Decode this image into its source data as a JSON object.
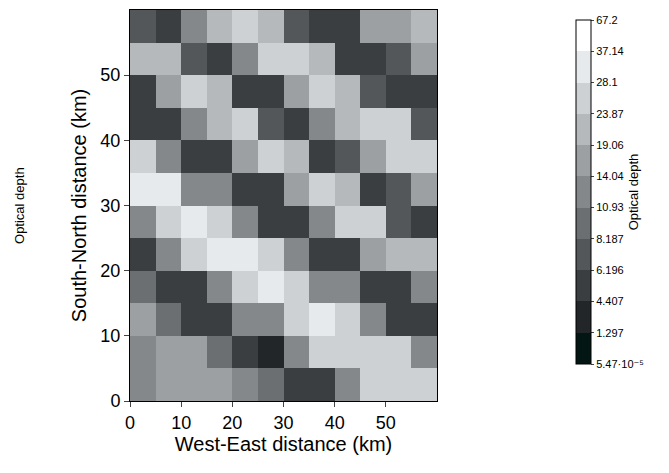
{
  "chart_data": {
    "type": "heatmap",
    "x_label": "West-East distance (km)",
    "y_label": "South-North distance (km)",
    "x": [
      2.5,
      7.5,
      12.5,
      17.5,
      22.5,
      27.5,
      32.5,
      37.5,
      42.5,
      47.5,
      52.5,
      57.5
    ],
    "y": [
      2.5,
      7.5,
      12.5,
      17.5,
      22.5,
      27.5,
      32.5,
      37.5,
      42.5,
      47.5,
      52.5,
      57.5
    ],
    "z": [
      [
        13,
        15,
        17,
        16,
        14,
        9,
        5,
        6,
        12,
        24,
        27,
        25
      ],
      [
        14,
        17,
        15,
        9,
        5,
        4,
        11,
        25,
        28,
        27,
        24,
        12
      ],
      [
        16,
        9,
        5,
        5,
        11,
        13,
        27,
        29,
        26,
        12,
        6,
        5
      ],
      [
        9,
        5,
        6,
        13,
        27,
        31,
        28,
        13,
        11,
        5,
        5,
        14
      ],
      [
        5,
        12,
        25,
        30,
        33,
        27,
        12,
        5,
        5,
        15,
        23,
        21
      ],
      [
        13,
        28,
        31,
        26,
        12,
        6,
        5,
        14,
        24,
        26,
        7,
        6
      ],
      [
        30,
        29,
        13,
        11,
        5,
        6,
        15,
        24,
        22,
        6,
        7,
        15
      ],
      [
        28,
        12,
        5,
        6,
        15,
        25,
        21,
        6,
        7,
        15,
        24,
        26
      ],
      [
        6,
        5,
        14,
        23,
        26,
        7,
        6,
        14,
        23,
        27,
        24,
        7
      ],
      [
        5,
        15,
        24,
        22,
        6,
        6,
        15,
        25,
        22,
        7,
        5,
        6
      ],
      [
        21,
        23,
        7,
        6,
        14,
        24,
        26,
        21,
        6,
        5,
        7,
        17
      ],
      [
        7,
        6,
        14,
        22,
        25,
        23,
        7,
        6,
        6,
        16,
        18,
        20
      ]
    ],
    "xlim": [
      0,
      60
    ],
    "ylim": [
      0,
      60
    ],
    "xticks": [
      0,
      10,
      20,
      30,
      40,
      50
    ],
    "yticks": [
      0,
      10,
      20,
      30,
      40,
      50
    ],
    "colorbar": {
      "title": "Optical depth",
      "range": [
        5.47e-05,
        67.2
      ],
      "ticks": [
        {
          "value": 5.47e-05,
          "label": "5.47·10⁻⁵"
        },
        1.297,
        4.407,
        6.196,
        8.187,
        10.93,
        14.04,
        19.06,
        23.87,
        28.1,
        37.14,
        67.2
      ]
    },
    "annotations": [
      "Optical depth"
    ]
  }
}
